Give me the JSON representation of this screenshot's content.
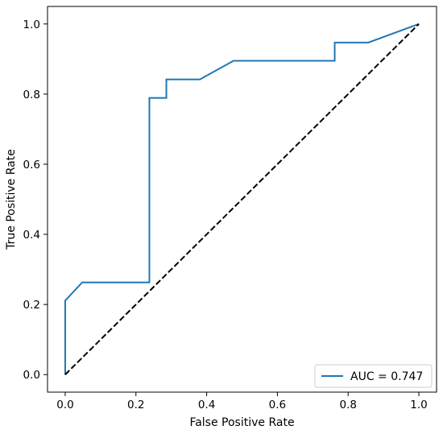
{
  "chart_data": {
    "type": "line",
    "title": "",
    "xlabel": "False Positive Rate",
    "ylabel": "True Positive Rate",
    "xlim": [
      -0.05,
      1.05
    ],
    "ylim": [
      -0.05,
      1.05
    ],
    "xticks": [
      0.0,
      0.2,
      0.4,
      0.6,
      0.8,
      1.0
    ],
    "yticks": [
      0.0,
      0.2,
      0.4,
      0.6,
      0.8,
      1.0
    ],
    "xtick_labels": [
      "0.0",
      "0.2",
      "0.4",
      "0.6",
      "0.8",
      "1.0"
    ],
    "ytick_labels": [
      "0.0",
      "0.2",
      "0.4",
      "0.6",
      "0.8",
      "1.0"
    ],
    "grid": false,
    "legend_position": "lower-right",
    "series": [
      {
        "name": "AUC = 0.747",
        "color": "#1f77b4",
        "style": "solid",
        "x": [
          0.0,
          0.0,
          0.048,
          0.048,
          0.238,
          0.238,
          0.286,
          0.286,
          0.381,
          0.476,
          0.476,
          0.762,
          0.762,
          0.857,
          1.0
        ],
        "y": [
          0.0,
          0.211,
          0.263,
          0.263,
          0.263,
          0.789,
          0.789,
          0.842,
          0.842,
          0.895,
          0.895,
          0.895,
          0.947,
          0.947,
          1.0
        ]
      },
      {
        "color": "#000000",
        "style": "dashed",
        "x": [
          0.0,
          1.0
        ],
        "y": [
          0.0,
          1.0
        ]
      }
    ]
  }
}
